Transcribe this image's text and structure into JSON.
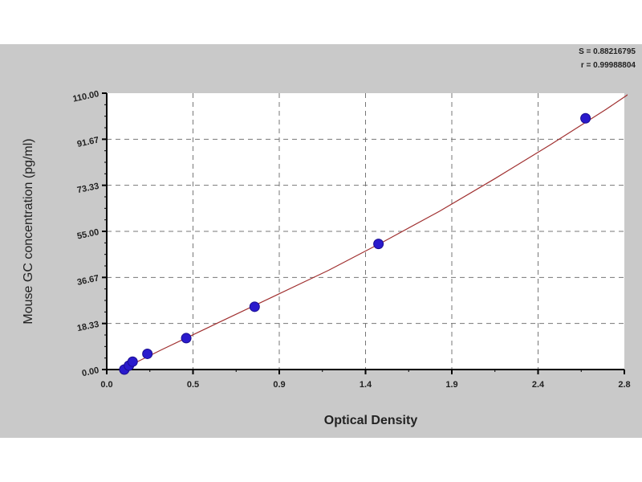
{
  "chart_data": {
    "type": "scatter",
    "xlabel": "Optical Density",
    "ylabel": "Mouse GC concentration (pg/ml)",
    "xlim": [
      0,
      2.8
    ],
    "ylim": [
      0,
      110
    ],
    "x_tick_labels": [
      "0.0",
      "0.5",
      "0.9",
      "1.4",
      "1.9",
      "2.4",
      "2.8"
    ],
    "y_tick_labels": [
      "0.00",
      "18.33",
      "36.67",
      "55.00",
      "73.33",
      "91.67",
      "110.00"
    ],
    "grid": true,
    "points": [
      {
        "x": 0.095,
        "y": 0
      },
      {
        "x": 0.12,
        "y": 1.56
      },
      {
        "x": 0.14,
        "y": 3.13
      },
      {
        "x": 0.22,
        "y": 6.25
      },
      {
        "x": 0.43,
        "y": 12.5
      },
      {
        "x": 0.8,
        "y": 25
      },
      {
        "x": 1.47,
        "y": 50
      },
      {
        "x": 2.59,
        "y": 100
      }
    ],
    "fit_curve": [
      [
        0.08,
        0
      ],
      [
        0.3,
        8
      ],
      [
        0.6,
        18.5
      ],
      [
        0.9,
        29
      ],
      [
        1.2,
        39.5
      ],
      [
        1.5,
        51
      ],
      [
        1.8,
        63
      ],
      [
        2.1,
        76
      ],
      [
        2.4,
        89.5
      ],
      [
        2.7,
        103.5
      ],
      [
        2.8,
        108.5
      ],
      [
        2.85,
        111
      ]
    ],
    "annotations": [
      "S = 0.88216795",
      "r = 0.99988804"
    ],
    "colors": {
      "points": "#2a1acc",
      "curve": "#a03030",
      "background": "#c9c9c9",
      "plot_bg": "#ffffff"
    }
  }
}
